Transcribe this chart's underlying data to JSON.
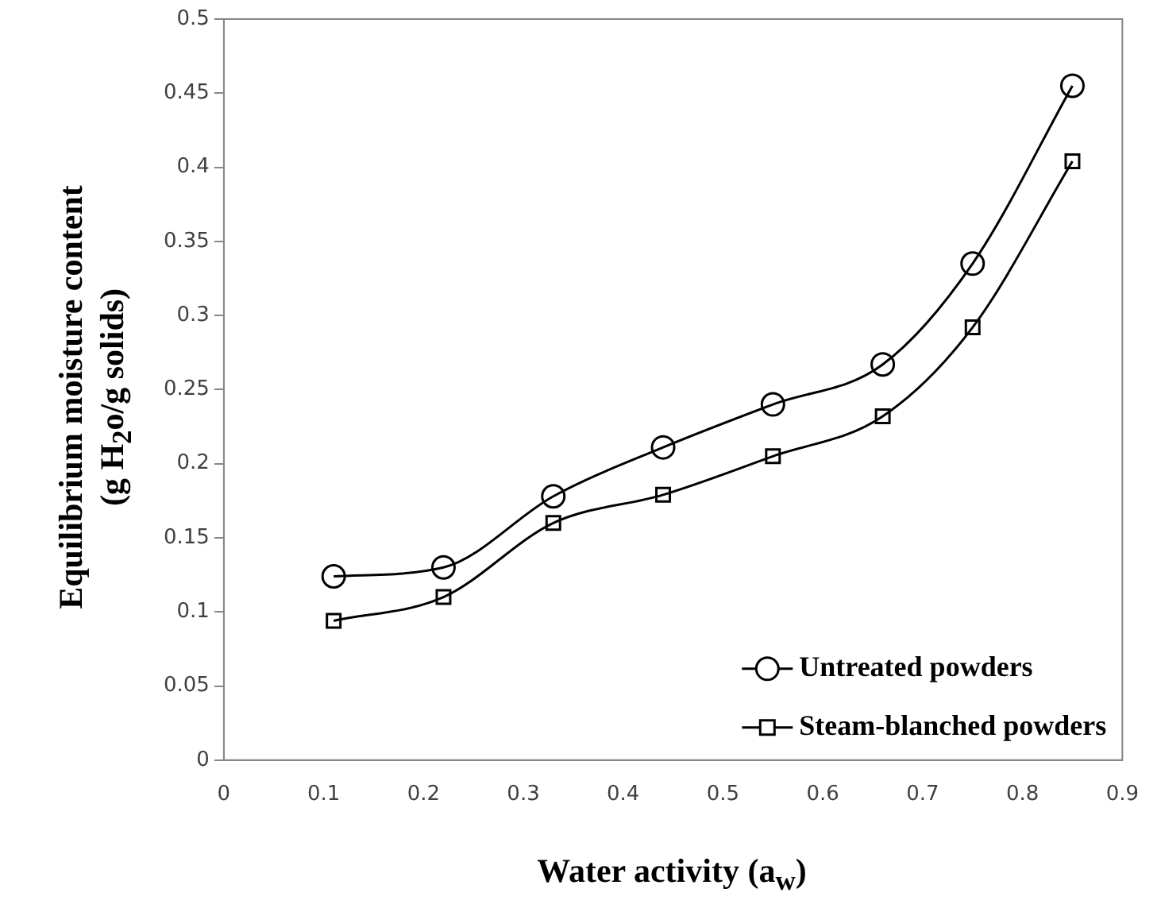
{
  "chart_data": {
    "type": "line",
    "xlabel": "Water activity (a$_{w}$)",
    "ylabel": "Equilibrium moisture content\n(g H$_{2}$o/g solids)",
    "x": [
      0.11,
      0.22,
      0.33,
      0.44,
      0.55,
      0.66,
      0.75,
      0.85
    ],
    "series": [
      {
        "name": "Untreated powders",
        "color": "#000000",
        "marker": "circle",
        "values": [
          0.124,
          0.13,
          0.178,
          0.211,
          0.24,
          0.267,
          0.335,
          0.455
        ]
      },
      {
        "name": "Steam-blanched powders",
        "color": "#000000",
        "marker": "square",
        "values": [
          0.094,
          0.11,
          0.16,
          0.179,
          0.205,
          0.232,
          0.292,
          0.404
        ]
      }
    ],
    "xlim": [
      0,
      0.9
    ],
    "xticks": [
      0,
      0.1,
      0.2,
      0.3,
      0.4,
      0.5,
      0.6,
      0.7,
      0.8,
      0.9
    ],
    "ylim": [
      0,
      0.5
    ],
    "yticks": [
      0,
      0.05,
      0.1,
      0.15,
      0.2,
      0.25,
      0.3,
      0.35,
      0.4,
      0.45,
      0.5
    ],
    "grid": false,
    "legend": "bottom right",
    "line_style": "solid"
  }
}
